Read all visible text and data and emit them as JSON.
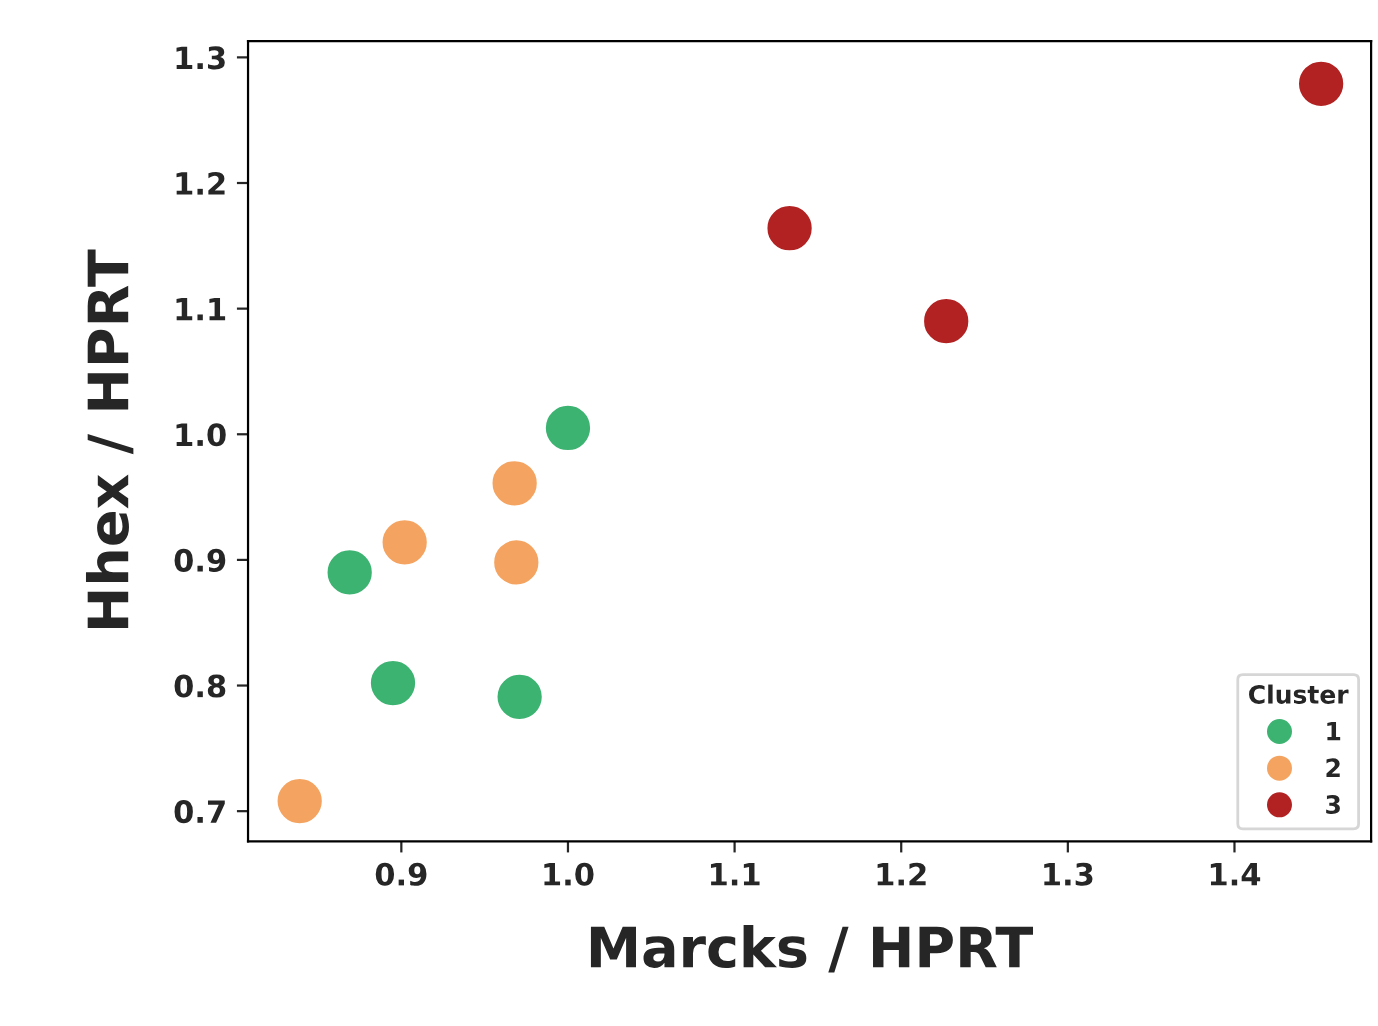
{
  "chart_data": {
    "type": "scatter",
    "xlabel": "Marcks / HPRT",
    "ylabel": "Hhex / HPRT",
    "legend_title": "Cluster",
    "legend": "bottom right",
    "marker": "circle",
    "grid": false,
    "xlim": [
      0.808,
      1.482
    ],
    "xticks": [
      0.9,
      {
        "value": 1,
        "label": "1.0"
      },
      1.1,
      1.2,
      1.3,
      1.4
    ],
    "ylim": [
      0.676,
      1.313
    ],
    "yticks": [
      0.7,
      0.8,
      0.9,
      {
        "value": 1,
        "label": "1.0"
      },
      1.1,
      1.2,
      1.3
    ],
    "series": [
      {
        "name": "1",
        "color": "#3cb371",
        "x": [
          0.869,
          0.895,
          0.971,
          1.0
        ],
        "values": [
          0.89,
          0.802,
          0.791,
          1.005
        ]
      },
      {
        "name": "2",
        "color": "#f4a460",
        "x": [
          0.839,
          0.902,
          0.968,
          0.969
        ],
        "values": [
          0.708,
          0.914,
          0.961,
          0.898
        ]
      },
      {
        "name": "3",
        "color": "#b22222",
        "x": [
          1.133,
          1.227,
          1.452
        ],
        "values": [
          1.164,
          1.09,
          1.279
        ]
      }
    ]
  }
}
